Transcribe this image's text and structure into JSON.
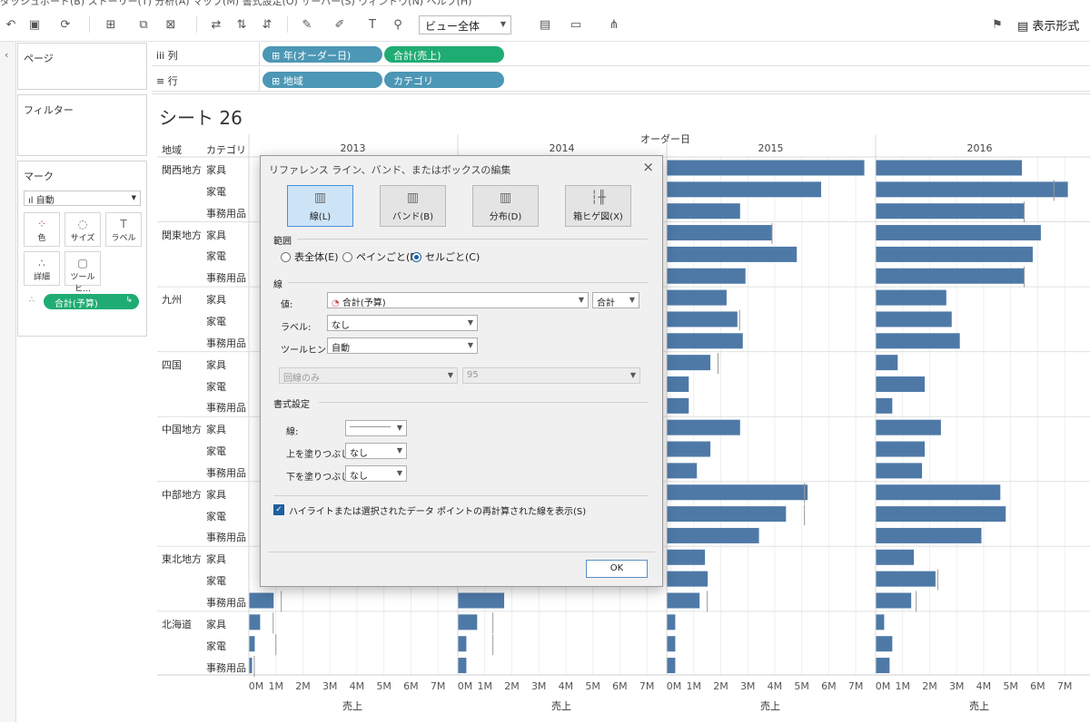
{
  "menu": {
    "text": "ダッシュボード(B)   ストーリー(T)   分析(A)   マップ(M)   書式設定(O)   サーバー(S)   ウィンドウ(N)   ヘルプ(H)"
  },
  "toolbar": {
    "fit": "ビュー全体",
    "show_me": "表示形式"
  },
  "pages": {
    "title": "ページ"
  },
  "filters": {
    "title": "フィルター"
  },
  "marks": {
    "title": "マーク",
    "type": "自動",
    "buttons": [
      {
        "label": "色",
        "icon": "color-icon"
      },
      {
        "label": "サイズ",
        "icon": "size-icon"
      },
      {
        "label": "ラベル",
        "icon": "label-icon"
      },
      {
        "label": "詳細",
        "icon": "detail-icon"
      },
      {
        "label": "ツールヒ…",
        "icon": "tooltip-icon"
      }
    ],
    "pill": "合計(予算)"
  },
  "columns_shelf": {
    "label": "列",
    "pills": [
      "⊞ 年(オーダー日)",
      "合計(売上)"
    ]
  },
  "rows_shelf": {
    "label": "行",
    "pills": [
      "⊞ 地域",
      "カテゴリ"
    ]
  },
  "sheet": {
    "title": "シート 26",
    "region_header": "地域",
    "category_header": "カテゴリ",
    "column_header": "オーダー日",
    "axis_label": "売上"
  },
  "chart_data": {
    "type": "bar",
    "title": "",
    "years": [
      "2013",
      "2014",
      "2015",
      "2016"
    ],
    "regions": [
      "関西地方",
      "関東地方",
      "九州",
      "四国",
      "中国地方",
      "中部地方",
      "東北地方",
      "北海道"
    ],
    "categories": [
      "家具",
      "家電",
      "事務用品"
    ],
    "x_ticks": [
      "0M",
      "1M",
      "2M",
      "3M",
      "4M",
      "5M",
      "6M",
      "7M"
    ],
    "xlim": [
      0,
      7.5
    ],
    "xlabel": "売上",
    "values": {
      "2015": [
        7.3,
        5.7,
        2.7,
        3.9,
        4.8,
        2.9,
        2.2,
        2.6,
        2.8,
        1.6,
        0.8,
        0.8,
        2.7,
        1.6,
        1.1,
        5.2,
        4.4,
        3.4,
        1.4,
        1.5,
        1.2,
        0.3,
        0.3,
        0.3
      ],
      "2016": [
        5.4,
        7.1,
        5.5,
        6.1,
        5.8,
        5.5,
        2.6,
        2.8,
        3.1,
        0.8,
        1.8,
        0.6,
        2.4,
        1.8,
        1.7,
        4.6,
        4.8,
        3.9,
        1.4,
        2.2,
        1.3,
        0.3,
        0.6,
        0.5
      ],
      "2013": [
        null,
        null,
        null,
        null,
        null,
        null,
        null,
        null,
        null,
        null,
        null,
        null,
        null,
        null,
        null,
        null,
        null,
        null,
        null,
        null,
        0.9,
        0.4,
        0.2,
        0.1
      ],
      "2014": [
        null,
        null,
        null,
        null,
        null,
        null,
        null,
        null,
        null,
        null,
        null,
        null,
        null,
        null,
        null,
        null,
        null,
        null,
        null,
        null,
        1.7,
        0.7,
        0.3,
        0.3
      ]
    },
    "budget_reference": {
      "2015": [
        null,
        null,
        null,
        3.9,
        null,
        null,
        null,
        2.7,
        null,
        1.9,
        null,
        null,
        null,
        null,
        null,
        5.1,
        5.1,
        null,
        null,
        null,
        1.5,
        null,
        null,
        null
      ],
      "2016": [
        null,
        6.6,
        5.5,
        null,
        null,
        5.5,
        null,
        null,
        null,
        null,
        null,
        null,
        null,
        null,
        null,
        null,
        null,
        null,
        null,
        2.3,
        1.5,
        null,
        null,
        null
      ],
      "2013": [
        null,
        null,
        null,
        null,
        null,
        null,
        null,
        null,
        null,
        null,
        null,
        null,
        null,
        null,
        null,
        null,
        null,
        null,
        null,
        null,
        1.2,
        0.9,
        1.0,
        0.2
      ],
      "2014": [
        null,
        null,
        null,
        null,
        null,
        null,
        null,
        null,
        null,
        null,
        null,
        null,
        null,
        null,
        null,
        null,
        null,
        null,
        null,
        null,
        null,
        1.3,
        1.3,
        null
      ]
    }
  },
  "dialog": {
    "title": "リファレンス ライン、バンド、またはボックスの編集",
    "close": "×",
    "types": [
      "線(L)",
      "バンド(B)",
      "分布(D)",
      "箱ヒゲ図(X)"
    ],
    "scope_title": "範囲",
    "scope_options": [
      "表全体(E)",
      "ペインごと(P)",
      "セルごと(C)"
    ],
    "line_title": "線",
    "value_label": "値:",
    "value": "合計(予算)",
    "aggregation": "合計",
    "label_label": "ラベル:",
    "label_value": "なし",
    "tooltip_label": "ツールヒント:",
    "tooltip_value": "自動",
    "band_option": "回線のみ",
    "band_value": "95",
    "format_title": "書式設定",
    "line_format_label": "線:",
    "fill_above_label": "上を塗りつぶし:",
    "fill_above": "なし",
    "fill_below_label": "下を塗りつぶし:",
    "fill_below": "なし",
    "checkbox_label": "ハイライトまたは選択されたデータ ポイントの再計算された線を表示(S)",
    "ok": "OK"
  },
  "colors": {
    "bar": "#4e79a7",
    "pill_blue": "#4c97b5",
    "pill_green": "#1fac73",
    "selected": "#1f5fa0"
  }
}
